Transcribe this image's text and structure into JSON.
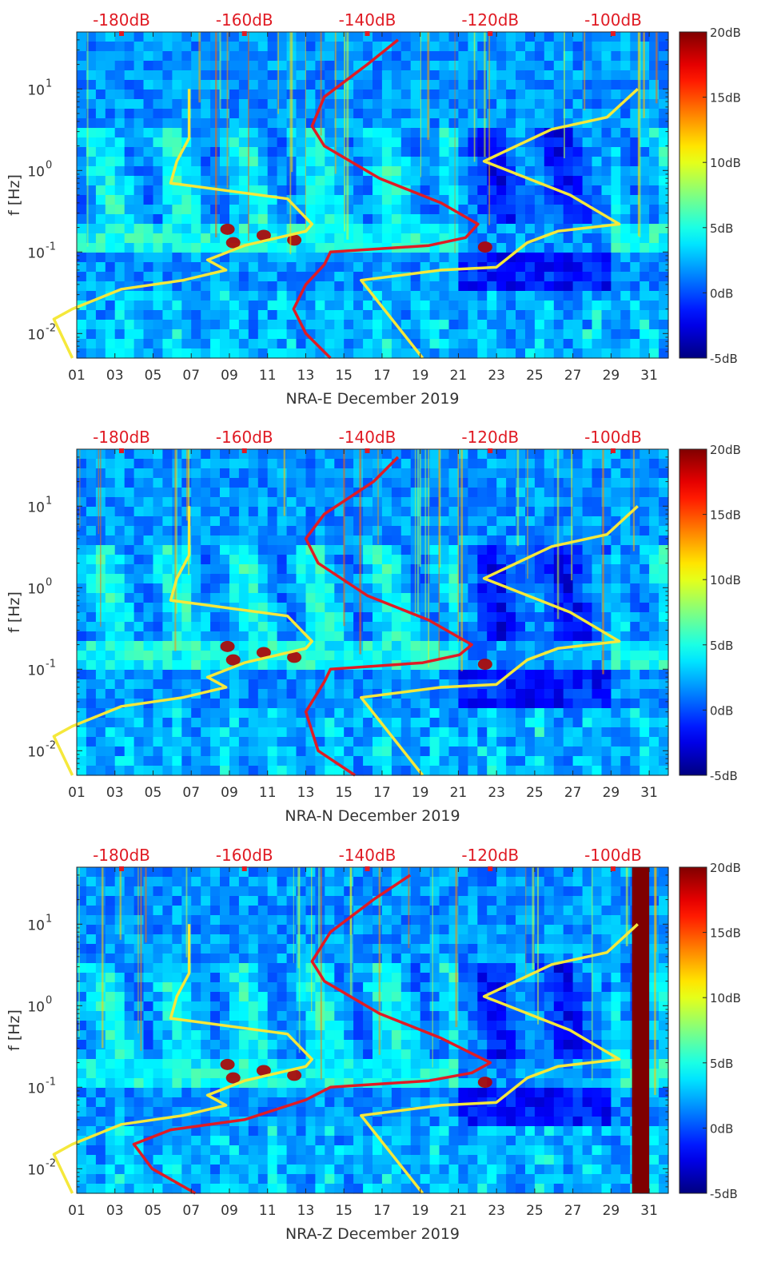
{
  "figure": {
    "colors": {
      "psd_curve": "#e01b24",
      "model_curve": "#f5e83b",
      "top_labels": "#e01b24"
    },
    "colormap": "jet"
  },
  "chart_data": [
    {
      "type": "heatmap",
      "title": "NRA-E December 2019",
      "xlabel": "NRA-E December 2019",
      "ylabel": "f [Hz]",
      "x_ticks": [
        "01",
        "03",
        "05",
        "07",
        "09",
        "11",
        "13",
        "15",
        "17",
        "19",
        "21",
        "23",
        "25",
        "27",
        "29",
        "31"
      ],
      "x_range_days": [
        1,
        32
      ],
      "y_scale": "log",
      "y_range_hz": [
        0.005,
        50
      ],
      "y_ticks": [
        {
          "value": 0.01,
          "base": "10",
          "exp": "-2"
        },
        {
          "value": 0.1,
          "base": "10",
          "exp": "-1"
        },
        {
          "value": 1,
          "base": "10",
          "exp": "0"
        },
        {
          "value": 10,
          "base": "10",
          "exp": "1"
        }
      ],
      "top_axis_labels": [
        "-180dB",
        "-160dB",
        "-140dB",
        "-120dB",
        "-100dB"
      ],
      "top_axis_db": [
        -180,
        -160,
        -140,
        -120,
        -100
      ],
      "colorbar": {
        "ticks": [
          "20dB",
          "15dB",
          "10dB",
          "5dB",
          "0dB",
          "-5dB"
        ],
        "range_db": [
          -5,
          20
        ]
      },
      "series": [
        {
          "name": "PSD profile (top dB scale)",
          "color": "red",
          "points": [
            [
              -146,
              0.005
            ],
            [
              -150,
              0.01
            ],
            [
              -152,
              0.02
            ],
            [
              -150,
              0.04
            ],
            [
              -147,
              0.07
            ],
            [
              -146,
              0.1
            ],
            [
              -130,
              0.12
            ],
            [
              -124,
              0.15
            ],
            [
              -122,
              0.22
            ],
            [
              -128,
              0.4
            ],
            [
              -138,
              0.8
            ],
            [
              -147,
              2
            ],
            [
              -149,
              3.5
            ],
            [
              -147,
              8
            ],
            [
              -140,
              20
            ],
            [
              -135,
              40
            ]
          ]
        },
        {
          "name": "noise model (top dB scale)",
          "color": "yellow",
          "points": [
            [
              -188,
              0.005
            ],
            [
              -191,
              0.015
            ],
            [
              -188,
              0.02
            ],
            [
              -180,
              0.035
            ],
            [
              -170,
              0.045
            ],
            [
              -163,
              0.06
            ],
            [
              -166,
              0.08
            ],
            [
              -160,
              0.12
            ],
            [
              -150,
              0.18
            ],
            [
              -149,
              0.22
            ],
            [
              -153,
              0.45
            ],
            [
              -172,
              0.7
            ],
            [
              -171,
              1.3
            ],
            [
              -169,
              2.5
            ],
            [
              -169,
              10
            ]
          ]
        },
        {
          "name": "noise model high (top dB scale)",
          "color": "yellow",
          "points": [
            [
              -131,
              0.005
            ],
            [
              -141,
              0.045
            ],
            [
              -128,
              0.06
            ],
            [
              -119,
              0.065
            ],
            [
              -114,
              0.13
            ],
            [
              -109,
              0.18
            ],
            [
              -99,
              0.22
            ],
            [
              -107,
              0.5
            ],
            [
              -121,
              1.3
            ],
            [
              -110,
              3.2
            ],
            [
              -101,
              4.5
            ],
            [
              -96,
              10
            ]
          ]
        }
      ]
    },
    {
      "type": "heatmap",
      "title": "NRA-N December 2019",
      "xlabel": "NRA-N December 2019",
      "ylabel": "f [Hz]",
      "x_ticks": [
        "01",
        "03",
        "05",
        "07",
        "09",
        "11",
        "13",
        "15",
        "17",
        "19",
        "21",
        "23",
        "25",
        "27",
        "29",
        "31"
      ],
      "x_range_days": [
        1,
        32
      ],
      "y_scale": "log",
      "y_range_hz": [
        0.005,
        50
      ],
      "y_ticks": [
        {
          "value": 0.01,
          "base": "10",
          "exp": "-2"
        },
        {
          "value": 0.1,
          "base": "10",
          "exp": "-1"
        },
        {
          "value": 1,
          "base": "10",
          "exp": "0"
        },
        {
          "value": 10,
          "base": "10",
          "exp": "1"
        }
      ],
      "top_axis_labels": [
        "-180dB",
        "-160dB",
        "-140dB",
        "-120dB",
        "-100dB"
      ],
      "top_axis_db": [
        -180,
        -160,
        -140,
        -120,
        -100
      ],
      "colorbar": {
        "ticks": [
          "20dB",
          "15dB",
          "10dB",
          "5dB",
          "0dB",
          "-5dB"
        ],
        "range_db": [
          -5,
          20
        ]
      },
      "series": [
        {
          "name": "PSD profile (top dB scale)",
          "color": "red",
          "points": [
            [
              -142,
              0.005
            ],
            [
              -148,
              0.01
            ],
            [
              -150,
              0.03
            ],
            [
              -147,
              0.07
            ],
            [
              -146,
              0.1
            ],
            [
              -131,
              0.12
            ],
            [
              -125,
              0.15
            ],
            [
              -123,
              0.2
            ],
            [
              -130,
              0.4
            ],
            [
              -140,
              0.8
            ],
            [
              -148,
              2
            ],
            [
              -150,
              4
            ],
            [
              -147,
              8
            ],
            [
              -139,
              20
            ],
            [
              -135,
              40
            ]
          ]
        },
        {
          "name": "noise model (top dB scale)",
          "color": "yellow",
          "points": [
            [
              -188,
              0.005
            ],
            [
              -191,
              0.015
            ],
            [
              -188,
              0.02
            ],
            [
              -180,
              0.035
            ],
            [
              -170,
              0.045
            ],
            [
              -163,
              0.06
            ],
            [
              -166,
              0.08
            ],
            [
              -160,
              0.12
            ],
            [
              -150,
              0.18
            ],
            [
              -149,
              0.22
            ],
            [
              -153,
              0.45
            ],
            [
              -172,
              0.7
            ],
            [
              -171,
              1.3
            ],
            [
              -169,
              2.5
            ],
            [
              -169,
              10
            ]
          ]
        },
        {
          "name": "noise model high (top dB scale)",
          "color": "yellow",
          "points": [
            [
              -131,
              0.005
            ],
            [
              -141,
              0.045
            ],
            [
              -128,
              0.06
            ],
            [
              -119,
              0.065
            ],
            [
              -114,
              0.13
            ],
            [
              -109,
              0.18
            ],
            [
              -99,
              0.22
            ],
            [
              -107,
              0.5
            ],
            [
              -121,
              1.3
            ],
            [
              -110,
              3.2
            ],
            [
              -101,
              4.5
            ],
            [
              -96,
              10
            ]
          ]
        }
      ]
    },
    {
      "type": "heatmap",
      "title": "NRA-Z December 2019",
      "xlabel": "NRA-Z December 2019",
      "ylabel": "f [Hz]",
      "x_ticks": [
        "01",
        "03",
        "05",
        "07",
        "09",
        "11",
        "13",
        "15",
        "17",
        "19",
        "21",
        "23",
        "25",
        "27",
        "29",
        "31"
      ],
      "x_range_days": [
        1,
        32
      ],
      "y_scale": "log",
      "y_range_hz": [
        0.005,
        50
      ],
      "y_ticks": [
        {
          "value": 0.01,
          "base": "10",
          "exp": "-2"
        },
        {
          "value": 0.1,
          "base": "10",
          "exp": "-1"
        },
        {
          "value": 1,
          "base": "10",
          "exp": "0"
        },
        {
          "value": 10,
          "base": "10",
          "exp": "1"
        }
      ],
      "top_axis_labels": [
        "-180dB",
        "-160dB",
        "-140dB",
        "-120dB",
        "-100dB"
      ],
      "top_axis_db": [
        -180,
        -160,
        -140,
        -120,
        -100
      ],
      "colorbar": {
        "ticks": [
          "20dB",
          "15dB",
          "10dB",
          "5dB",
          "0dB",
          "-5dB"
        ],
        "range_db": [
          -5,
          20
        ]
      },
      "saturated_band_days": [
        30.1,
        31.0
      ],
      "series": [
        {
          "name": "PSD profile (top dB scale)",
          "color": "red",
          "points": [
            [
              -168,
              0.005
            ],
            [
              -175,
              0.01
            ],
            [
              -178,
              0.02
            ],
            [
              -172,
              0.03
            ],
            [
              -160,
              0.04
            ],
            [
              -150,
              0.07
            ],
            [
              -146,
              0.1
            ],
            [
              -130,
              0.12
            ],
            [
              -123,
              0.15
            ],
            [
              -120,
              0.2
            ],
            [
              -128,
              0.4
            ],
            [
              -138,
              0.8
            ],
            [
              -147,
              2
            ],
            [
              -149,
              3.5
            ],
            [
              -146,
              8
            ],
            [
              -139,
              20
            ],
            [
              -133,
              40
            ]
          ]
        },
        {
          "name": "noise model (top dB scale)",
          "color": "yellow",
          "points": [
            [
              -188,
              0.005
            ],
            [
              -191,
              0.015
            ],
            [
              -188,
              0.02
            ],
            [
              -180,
              0.035
            ],
            [
              -170,
              0.045
            ],
            [
              -163,
              0.06
            ],
            [
              -166,
              0.08
            ],
            [
              -160,
              0.12
            ],
            [
              -150,
              0.18
            ],
            [
              -149,
              0.22
            ],
            [
              -153,
              0.45
            ],
            [
              -172,
              0.7
            ],
            [
              -171,
              1.3
            ],
            [
              -169,
              2.5
            ],
            [
              -169,
              10
            ]
          ]
        },
        {
          "name": "noise model high (top dB scale)",
          "color": "yellow",
          "points": [
            [
              -131,
              0.005
            ],
            [
              -141,
              0.045
            ],
            [
              -128,
              0.06
            ],
            [
              -119,
              0.065
            ],
            [
              -114,
              0.13
            ],
            [
              -109,
              0.18
            ],
            [
              -99,
              0.22
            ],
            [
              -107,
              0.5
            ],
            [
              -121,
              1.3
            ],
            [
              -110,
              3.2
            ],
            [
              -101,
              4.5
            ],
            [
              -96,
              10
            ]
          ]
        }
      ]
    }
  ]
}
